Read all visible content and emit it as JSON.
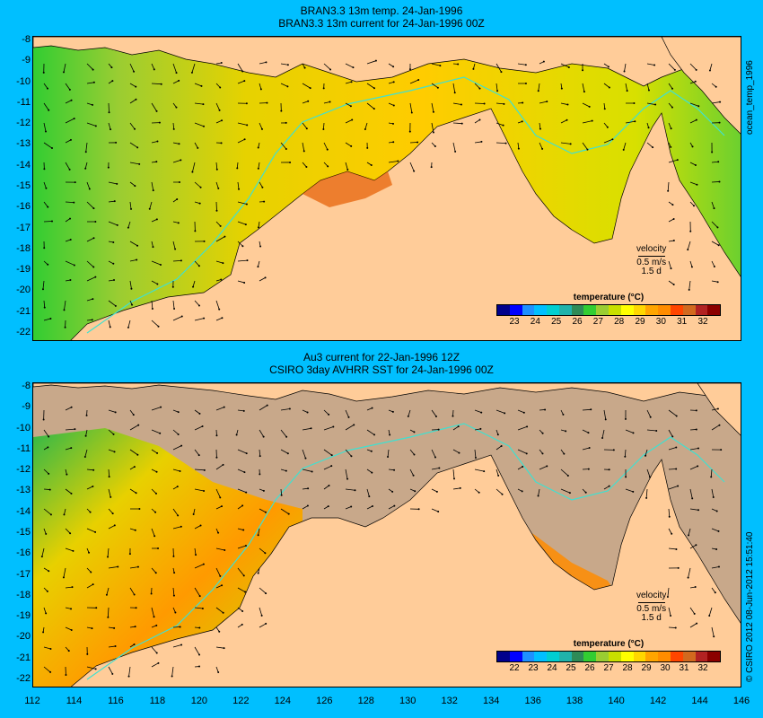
{
  "top_panel": {
    "title_line1": "BRAN3.3 13m temp. 24-Jan-1996",
    "title_line2": "BRAN3.3 13m current for 24-Jan-1996 00Z",
    "side_label": "ocean_temp_1996",
    "legend": {
      "title": "temperature (°C)",
      "ticks": [
        "23",
        "24",
        "25",
        "26",
        "27",
        "28",
        "29",
        "30",
        "31",
        "32"
      ],
      "colors": [
        "#00008b",
        "#0000ff",
        "#1e90ff",
        "#00bfff",
        "#00ced1",
        "#20b2aa",
        "#2e8b57",
        "#32cd32",
        "#9acd32",
        "#c8e000",
        "#ffff00",
        "#ffd700",
        "#ffa500",
        "#ff8c00",
        "#ff4500",
        "#d2691e",
        "#b22222",
        "#8b0000"
      ]
    },
    "velocity_key": {
      "label": "velocity",
      "speed": "0.5 m/s",
      "duration": "1.5 d"
    }
  },
  "bottom_panel": {
    "title_line1": "Au3 current for 22-Jan-1996 12Z",
    "title_line2": "CSIRO 3day AVHRR SST for 24-Jan-1996 00Z",
    "side_label": "© CSIRO 2012  08-Jun-2012 15:51:40",
    "legend": {
      "title": "temperature (°C)",
      "ticks": [
        "22",
        "23",
        "24",
        "25",
        "26",
        "27",
        "28",
        "29",
        "30",
        "31",
        "32"
      ],
      "colors": [
        "#00008b",
        "#0000ff",
        "#1e90ff",
        "#00bfff",
        "#00ced1",
        "#20b2aa",
        "#2e8b57",
        "#32cd32",
        "#9acd32",
        "#c8e000",
        "#ffff00",
        "#ffd700",
        "#ffa500",
        "#ff8c00",
        "#ff4500",
        "#d2691e",
        "#b22222",
        "#8b0000"
      ]
    },
    "velocity_key": {
      "label": "velocity",
      "speed": "0.5 m/s",
      "duration": "1.5 d"
    }
  },
  "axes": {
    "lat_ticks": [
      "-8",
      "-9",
      "-10",
      "-11",
      "-12",
      "-13",
      "-14",
      "-15",
      "-16",
      "-17",
      "-18",
      "-19",
      "-20",
      "-21",
      "-22"
    ],
    "lon_ticks": [
      "112",
      "114",
      "116",
      "118",
      "120",
      "122",
      "124",
      "126",
      "128",
      "130",
      "132",
      "134",
      "136",
      "138",
      "140",
      "142",
      "144",
      "146"
    ]
  },
  "colors": {
    "background": "#00bfff",
    "land": "#ffcc99",
    "no_data": "#c8a88a",
    "isobath": "#40e0d0"
  }
}
